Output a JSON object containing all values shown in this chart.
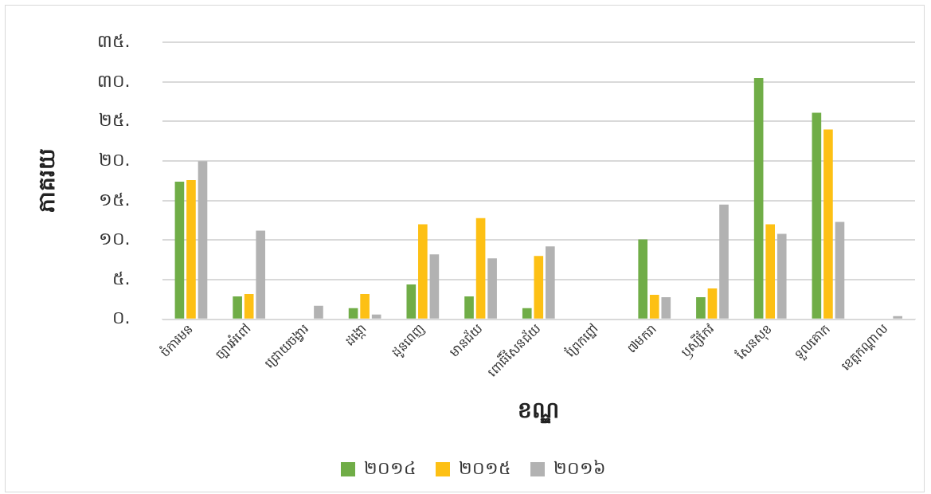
{
  "chart_data": {
    "type": "bar",
    "xlabel": "ខណ្ឌ",
    "ylabel": "ភាគរយ",
    "categories": [
      "ចំការមន",
      "ច្បារអំពៅ",
      "ជ្រោយចង្វារ",
      "ដង្កោ",
      "ដូនពេញ",
      "មានជ័យ",
      "ពោធិ៍សែនជ័យ",
      "ព្រែកព្នៅ",
      "៧មករា",
      "ឫស្សីកែវ",
      "សែនសុខ",
      "ទួលគោក",
      "ខេត្តកណ្ដាល"
    ],
    "series": [
      {
        "name": "២០១៤",
        "color": "#70ad47",
        "values": [
          17.4,
          2.9,
          0,
          1.4,
          4.4,
          2.9,
          1.4,
          0,
          10.1,
          2.8,
          30.5,
          26.1,
          0
        ]
      },
      {
        "name": "២០១៥",
        "color": "#fdc014",
        "values": [
          17.6,
          3.2,
          0,
          3.2,
          12.0,
          12.8,
          8.0,
          0,
          3.1,
          3.9,
          12.0,
          24.0,
          0
        ]
      },
      {
        "name": "២០១៦",
        "color": "#b2b2b2",
        "values": [
          20.0,
          11.2,
          1.7,
          0.6,
          8.2,
          7.7,
          9.2,
          0.1,
          2.8,
          14.5,
          10.8,
          12.3,
          0.4
        ]
      }
    ],
    "ylim": [
      0,
      35
    ],
    "yticks": [
      {
        "value": 0,
        "label": "០."
      },
      {
        "value": 5,
        "label": "៥."
      },
      {
        "value": 10,
        "label": "១០."
      },
      {
        "value": 15,
        "label": "១៥."
      },
      {
        "value": 20,
        "label": "២០."
      },
      {
        "value": 25,
        "label": "២៥."
      },
      {
        "value": 30,
        "label": "៣០."
      },
      {
        "value": 35,
        "label": "៣៥."
      }
    ],
    "grid": "y",
    "legend": "bottom"
  }
}
